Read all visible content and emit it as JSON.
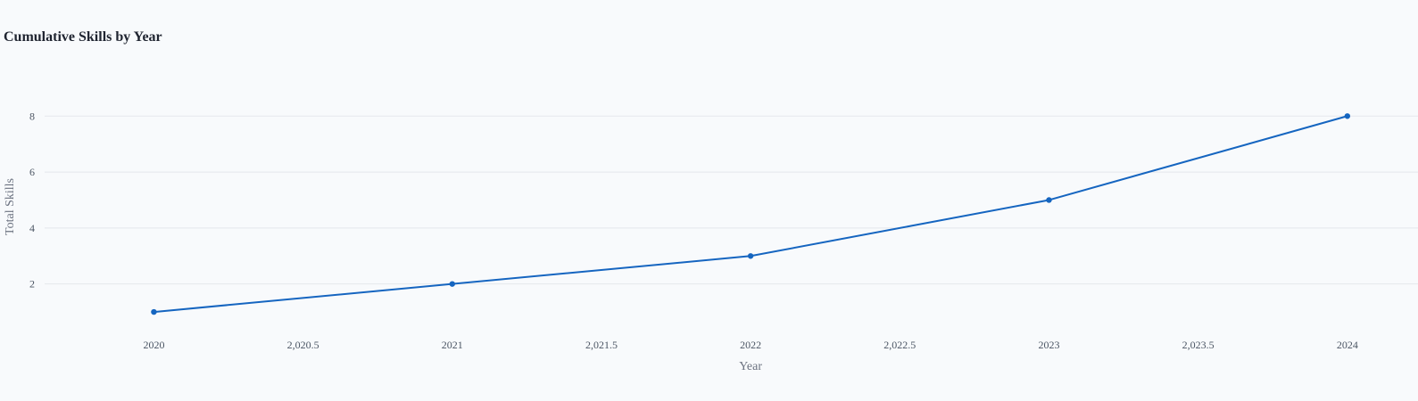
{
  "chart_data": {
    "type": "line",
    "title": "Cumulative Skills by Year",
    "xlabel": "Year",
    "ylabel": "Total Skills",
    "x": [
      2020,
      2021,
      2022,
      2023,
      2024
    ],
    "series": [
      {
        "values": [
          1,
          2,
          3,
          5,
          8
        ]
      }
    ],
    "xlim": [
      2019.6338,
      2024.2368
    ],
    "ylim": [
      0.4925,
      8.9642
    ],
    "x_ticks": [
      2020,
      2020.5,
      2021,
      2021.5,
      2022,
      2022.5,
      2023,
      2023.5,
      2024
    ],
    "x_tick_labels": [
      "2020",
      "2,020.5",
      "2021",
      "2,021.5",
      "2022",
      "2,022.5",
      "2023",
      "2,023.5",
      "2024"
    ],
    "y_ticks": [
      2,
      4,
      6,
      8
    ],
    "y_tick_labels": [
      "2",
      "4",
      "6",
      "8"
    ],
    "grid": "horizontal",
    "legend": "none",
    "colors": {
      "line": "#1565c0",
      "grid": "#e5e7eb",
      "background": "#f8fafc"
    }
  }
}
